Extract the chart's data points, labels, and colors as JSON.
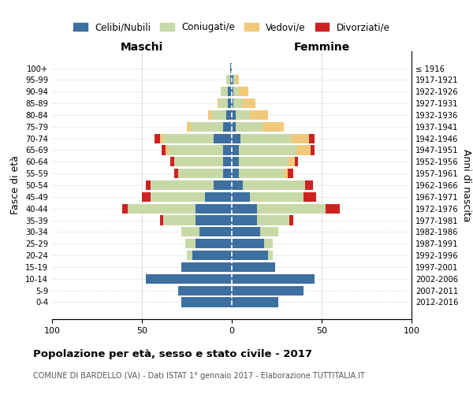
{
  "age_groups": [
    "0-4",
    "5-9",
    "10-14",
    "15-19",
    "20-24",
    "25-29",
    "30-34",
    "35-39",
    "40-44",
    "45-49",
    "50-54",
    "55-59",
    "60-64",
    "65-69",
    "70-74",
    "75-79",
    "80-84",
    "85-89",
    "90-94",
    "95-99",
    "100+"
  ],
  "birth_years": [
    "2012-2016",
    "2007-2011",
    "2002-2006",
    "1997-2001",
    "1992-1996",
    "1987-1991",
    "1982-1986",
    "1977-1981",
    "1972-1976",
    "1967-1971",
    "1962-1966",
    "1957-1961",
    "1952-1956",
    "1947-1951",
    "1942-1946",
    "1937-1941",
    "1932-1936",
    "1927-1931",
    "1922-1926",
    "1917-1921",
    "≤ 1916"
  ],
  "maschi": {
    "celibi": [
      28,
      30,
      48,
      28,
      22,
      20,
      18,
      20,
      20,
      15,
      10,
      5,
      5,
      5,
      10,
      5,
      3,
      2,
      2,
      1,
      1
    ],
    "coniugati": [
      0,
      0,
      0,
      0,
      3,
      6,
      10,
      18,
      38,
      30,
      35,
      25,
      27,
      30,
      28,
      18,
      8,
      5,
      4,
      2,
      0
    ],
    "vedovi": [
      0,
      0,
      0,
      0,
      0,
      0,
      0,
      0,
      0,
      0,
      0,
      0,
      0,
      2,
      2,
      2,
      2,
      1,
      0,
      0,
      0
    ],
    "divorziati": [
      0,
      0,
      0,
      0,
      0,
      0,
      0,
      2,
      3,
      5,
      3,
      2,
      2,
      2,
      3,
      0,
      0,
      0,
      0,
      0,
      0
    ]
  },
  "femmine": {
    "nubili": [
      26,
      40,
      46,
      24,
      20,
      18,
      16,
      14,
      14,
      10,
      6,
      4,
      4,
      4,
      5,
      2,
      2,
      1,
      1,
      1,
      0
    ],
    "coniugate": [
      0,
      0,
      0,
      0,
      3,
      5,
      10,
      18,
      38,
      30,
      35,
      25,
      27,
      32,
      28,
      15,
      8,
      5,
      3,
      1,
      0
    ],
    "vedove": [
      0,
      0,
      0,
      0,
      0,
      0,
      0,
      0,
      0,
      0,
      0,
      2,
      4,
      8,
      10,
      12,
      10,
      7,
      5,
      2,
      0
    ],
    "divorziate": [
      0,
      0,
      0,
      0,
      0,
      0,
      0,
      2,
      8,
      7,
      4,
      3,
      2,
      2,
      3,
      0,
      0,
      0,
      0,
      0,
      0
    ]
  },
  "colors": {
    "celibi_nubili": "#3d6fa0",
    "coniugati": "#c8d9a8",
    "vedovi": "#f0c97a",
    "divorziati": "#cc2222"
  },
  "xlim": 100,
  "title_main": "Popolazione per età, sesso e stato civile - 2017",
  "title_sub": "COMUNE DI BARDELLO (VA) - Dati ISTAT 1° gennaio 2017 - Elaborazione TUTTITALIA.IT",
  "ylabel_left": "Fasce di età",
  "ylabel_right": "Anni di nascita",
  "legend_labels": [
    "Celibi/Nubili",
    "Coniugati/e",
    "Vedovi/e",
    "Divorziati/e"
  ],
  "maschi_label": "Maschi",
  "femmine_label": "Femmine"
}
